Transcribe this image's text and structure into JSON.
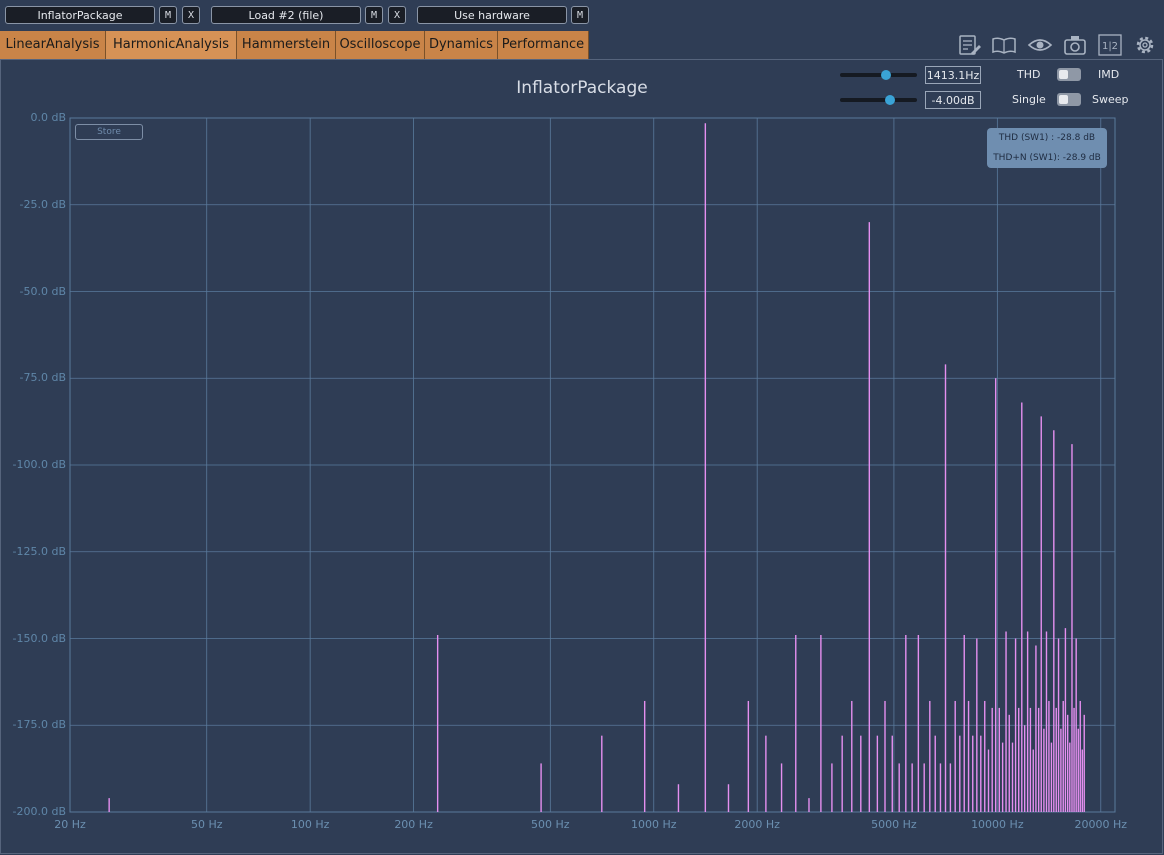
{
  "slots": {
    "slot1_label": "InflatorPackage",
    "slot2_label": "Load #2 (file)",
    "slot3_label": "Use hardware",
    "mute_label": "M",
    "close_label": "X"
  },
  "tabs": [
    "LinearAnalysis",
    "HarmonicAnalysis",
    "Hammerstein",
    "Oscilloscope",
    "Dynamics",
    "Performance"
  ],
  "active_tab": "HarmonicAnalysis",
  "toolbar_icons": [
    "notes-icon",
    "book-icon",
    "eye-icon",
    "camera-icon",
    "split-1-2-icon",
    "gear-icon"
  ],
  "controls": {
    "frequency_value": "1413.1Hz",
    "level_value": "-4.00dB",
    "thd_label": "THD",
    "imd_label": "IMD",
    "single_label": "Single",
    "sweep_label": "Sweep",
    "frequency_slider_fraction": 0.6,
    "level_slider_fraction": 0.65
  },
  "plot": {
    "title": "InflatorPackage",
    "store_label": "Store",
    "thd_readout": "THD (SW1) : -28.8 dB",
    "thdn_readout": "THD+N (SW1): -28.9 dB"
  },
  "colors": {
    "background": "#2f3d55",
    "tab": "#c98448",
    "grid": "#5a7a9c",
    "spectrum": "#e58ff0",
    "accent": "#3aa3d6"
  },
  "chart_data": {
    "type": "line",
    "title": "InflatorPackage",
    "x_scale": "log",
    "xlim": [
      20,
      22000
    ],
    "ylim": [
      -200,
      0
    ],
    "x_ticks": [
      {
        "value": 20,
        "label": "20 Hz"
      },
      {
        "value": 50,
        "label": "50 Hz"
      },
      {
        "value": 100,
        "label": "100 Hz"
      },
      {
        "value": 200,
        "label": "200 Hz"
      },
      {
        "value": 500,
        "label": "500 Hz"
      },
      {
        "value": 1000,
        "label": "1000 Hz"
      },
      {
        "value": 2000,
        "label": "2000 Hz"
      },
      {
        "value": 5000,
        "label": "5000 Hz"
      },
      {
        "value": 10000,
        "label": "10000 Hz"
      },
      {
        "value": 20000,
        "label": "20000 Hz"
      }
    ],
    "y_ticks": [
      {
        "value": 0,
        "label": "0.0 dB"
      },
      {
        "value": -25,
        "label": "-25.0 dB"
      },
      {
        "value": -50,
        "label": "-50.0 dB"
      },
      {
        "value": -75,
        "label": "-75.0 dB"
      },
      {
        "value": -100,
        "label": "-100.0 dB"
      },
      {
        "value": -125,
        "label": "-125.0 dB"
      },
      {
        "value": -150,
        "label": "-150.0 dB"
      },
      {
        "value": -175,
        "label": "-175.0 dB"
      },
      {
        "value": -200,
        "label": "-200.0 dB"
      }
    ],
    "grid": true,
    "series": [
      {
        "spikes": [
          {
            "f": 26,
            "db": -196
          },
          {
            "f": 235,
            "db": -149
          },
          {
            "f": 470,
            "db": -186
          },
          {
            "f": 706,
            "db": -178
          },
          {
            "f": 941,
            "db": -168
          },
          {
            "f": 1180,
            "db": -192
          },
          {
            "f": 1413,
            "db": -1.5
          },
          {
            "f": 1650,
            "db": -192
          },
          {
            "f": 1885,
            "db": -168
          },
          {
            "f": 2120,
            "db": -178
          },
          {
            "f": 2355,
            "db": -186
          },
          {
            "f": 2590,
            "db": -149
          },
          {
            "f": 2830,
            "db": -196
          },
          {
            "f": 3065,
            "db": -149
          },
          {
            "f": 3300,
            "db": -186
          },
          {
            "f": 3535,
            "db": -178
          },
          {
            "f": 3770,
            "db": -168
          },
          {
            "f": 4005,
            "db": -178
          },
          {
            "f": 4240,
            "db": -30
          },
          {
            "f": 4475,
            "db": -178
          },
          {
            "f": 4710,
            "db": -168
          },
          {
            "f": 4945,
            "db": -178
          },
          {
            "f": 5180,
            "db": -186
          },
          {
            "f": 5415,
            "db": -149
          },
          {
            "f": 5650,
            "db": -186
          },
          {
            "f": 5890,
            "db": -149
          },
          {
            "f": 6125,
            "db": -186
          },
          {
            "f": 6360,
            "db": -168
          },
          {
            "f": 6595,
            "db": -178
          },
          {
            "f": 6830,
            "db": -186
          },
          {
            "f": 7065,
            "db": -71
          },
          {
            "f": 7300,
            "db": -186
          },
          {
            "f": 7540,
            "db": -168
          },
          {
            "f": 7775,
            "db": -178
          },
          {
            "f": 8010,
            "db": -149
          },
          {
            "f": 8245,
            "db": -168
          },
          {
            "f": 8480,
            "db": -178
          },
          {
            "f": 8715,
            "db": -150
          },
          {
            "f": 8950,
            "db": -178
          },
          {
            "f": 9190,
            "db": -168
          },
          {
            "f": 9425,
            "db": -182
          },
          {
            "f": 9660,
            "db": -170
          },
          {
            "f": 9890,
            "db": -75
          },
          {
            "f": 10130,
            "db": -170
          },
          {
            "f": 10360,
            "db": -180
          },
          {
            "f": 10600,
            "db": -148
          },
          {
            "f": 10830,
            "db": -172
          },
          {
            "f": 11070,
            "db": -180
          },
          {
            "f": 11300,
            "db": -150
          },
          {
            "f": 11540,
            "db": -170
          },
          {
            "f": 11780,
            "db": -82
          },
          {
            "f": 12010,
            "db": -175
          },
          {
            "f": 12250,
            "db": -148
          },
          {
            "f": 12480,
            "db": -170
          },
          {
            "f": 12720,
            "db": -182
          },
          {
            "f": 12950,
            "db": -152
          },
          {
            "f": 13190,
            "db": -170
          },
          {
            "f": 13420,
            "db": -86
          },
          {
            "f": 13660,
            "db": -176
          },
          {
            "f": 13900,
            "db": -148
          },
          {
            "f": 14130,
            "db": -168
          },
          {
            "f": 14370,
            "db": -180
          },
          {
            "f": 14600,
            "db": -90
          },
          {
            "f": 14840,
            "db": -170
          },
          {
            "f": 15070,
            "db": -150
          },
          {
            "f": 15310,
            "db": -176
          },
          {
            "f": 15550,
            "db": -168
          },
          {
            "f": 15780,
            "db": -147
          },
          {
            "f": 16020,
            "db": -172
          },
          {
            "f": 16250,
            "db": -180
          },
          {
            "f": 16490,
            "db": -94
          },
          {
            "f": 16720,
            "db": -170
          },
          {
            "f": 16960,
            "db": -150
          },
          {
            "f": 17200,
            "db": -176
          },
          {
            "f": 17430,
            "db": -168
          },
          {
            "f": 17670,
            "db": -182
          },
          {
            "f": 17900,
            "db": -172
          }
        ]
      }
    ]
  }
}
